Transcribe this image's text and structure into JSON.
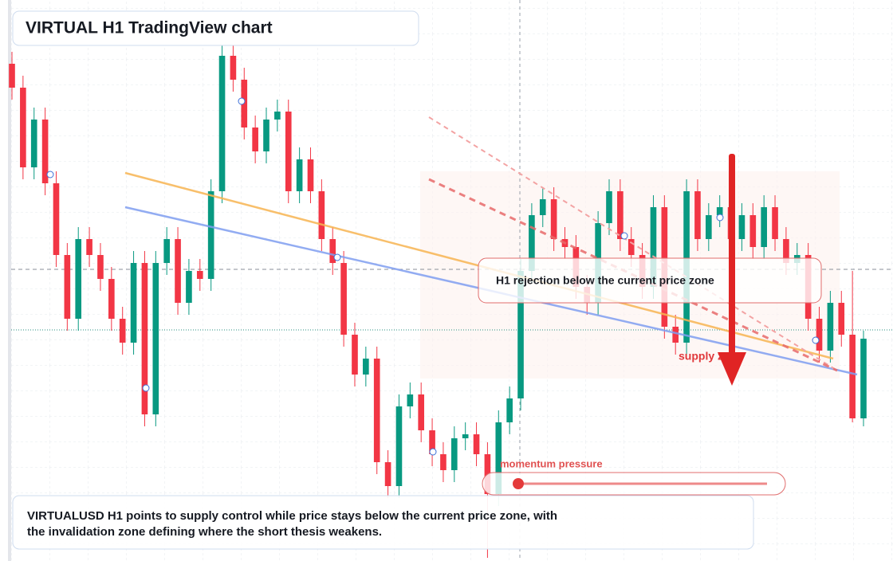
{
  "chart_data": {
    "type": "candlestick",
    "title": "VIRTUAL H1 TradingView chart",
    "annotations": [
      "H1 rejection below the current price zone",
      "supply zone",
      "momentum pressure"
    ],
    "description": [
      "VIRTUALUSD H1 points to supply control while price stays below the current price zone, with",
      "the invalidation zone defining where the short thesis weakens."
    ],
    "up_color": "#089981",
    "down_color": "#f23645",
    "ylim": [
      0,
      704
    ],
    "open": [
      624,
      594,
      494,
      554,
      474,
      384,
      304,
      404,
      384,
      354,
      304,
      274,
      374,
      184,
      374,
      404,
      324,
      364,
      354,
      464,
      634,
      604,
      544,
      514,
      554,
      564,
      464,
      504,
      464,
      404,
      374,
      284,
      234,
      254,
      124,
      94,
      194,
      209,
      164,
      134,
      114,
      154,
      159,
      134,
      84,
      174,
      204,
      364,
      434,
      454,
      404,
      394,
      344,
      324,
      424,
      464,
      404,
      384,
      344,
      444,
      294,
      274,
      464,
      404,
      434,
      444,
      404,
      434,
      394,
      444,
      404,
      374,
      384,
      304,
      264,
      324,
      284,
      179
    ],
    "high": [
      639,
      609,
      569,
      569,
      489,
      399,
      419,
      419,
      399,
      369,
      319,
      389,
      389,
      389,
      419,
      419,
      379,
      379,
      479,
      649,
      649,
      619,
      559,
      569,
      579,
      579,
      519,
      519,
      479,
      419,
      389,
      299,
      269,
      269,
      139,
      209,
      224,
      224,
      179,
      149,
      169,
      174,
      174,
      149,
      189,
      219,
      379,
      449,
      469,
      469,
      419,
      409,
      359,
      439,
      479,
      479,
      419,
      399,
      459,
      459,
      309,
      479,
      479,
      449,
      459,
      459,
      449,
      449,
      459,
      459,
      419,
      399,
      399,
      319,
      339,
      339,
      364,
      289
    ],
    "low": [
      579,
      479,
      479,
      459,
      369,
      289,
      289,
      369,
      339,
      289,
      259,
      259,
      169,
      169,
      359,
      309,
      309,
      339,
      339,
      449,
      589,
      529,
      499,
      499,
      539,
      449,
      449,
      449,
      389,
      359,
      269,
      219,
      219,
      109,
      79,
      79,
      179,
      149,
      119,
      99,
      99,
      139,
      119,
      4,
      69,
      159,
      189,
      349,
      419,
      389,
      379,
      329,
      309,
      309,
      409,
      389,
      369,
      329,
      329,
      279,
      259,
      259,
      389,
      389,
      419,
      389,
      389,
      379,
      379,
      389,
      359,
      359,
      289,
      249,
      249,
      269,
      174,
      169
    ],
    "close": [
      594,
      494,
      554,
      474,
      384,
      304,
      404,
      384,
      354,
      304,
      274,
      374,
      184,
      374,
      404,
      324,
      364,
      354,
      464,
      634,
      604,
      544,
      514,
      554,
      564,
      464,
      504,
      464,
      404,
      374,
      284,
      234,
      254,
      124,
      94,
      194,
      209,
      164,
      134,
      114,
      154,
      159,
      134,
      84,
      174,
      204,
      364,
      434,
      454,
      404,
      394,
      344,
      324,
      424,
      464,
      404,
      384,
      344,
      444,
      294,
      274,
      464,
      404,
      434,
      444,
      404,
      434,
      394,
      444,
      404,
      374,
      384,
      304,
      264,
      324,
      284,
      179,
      279
    ]
  }
}
